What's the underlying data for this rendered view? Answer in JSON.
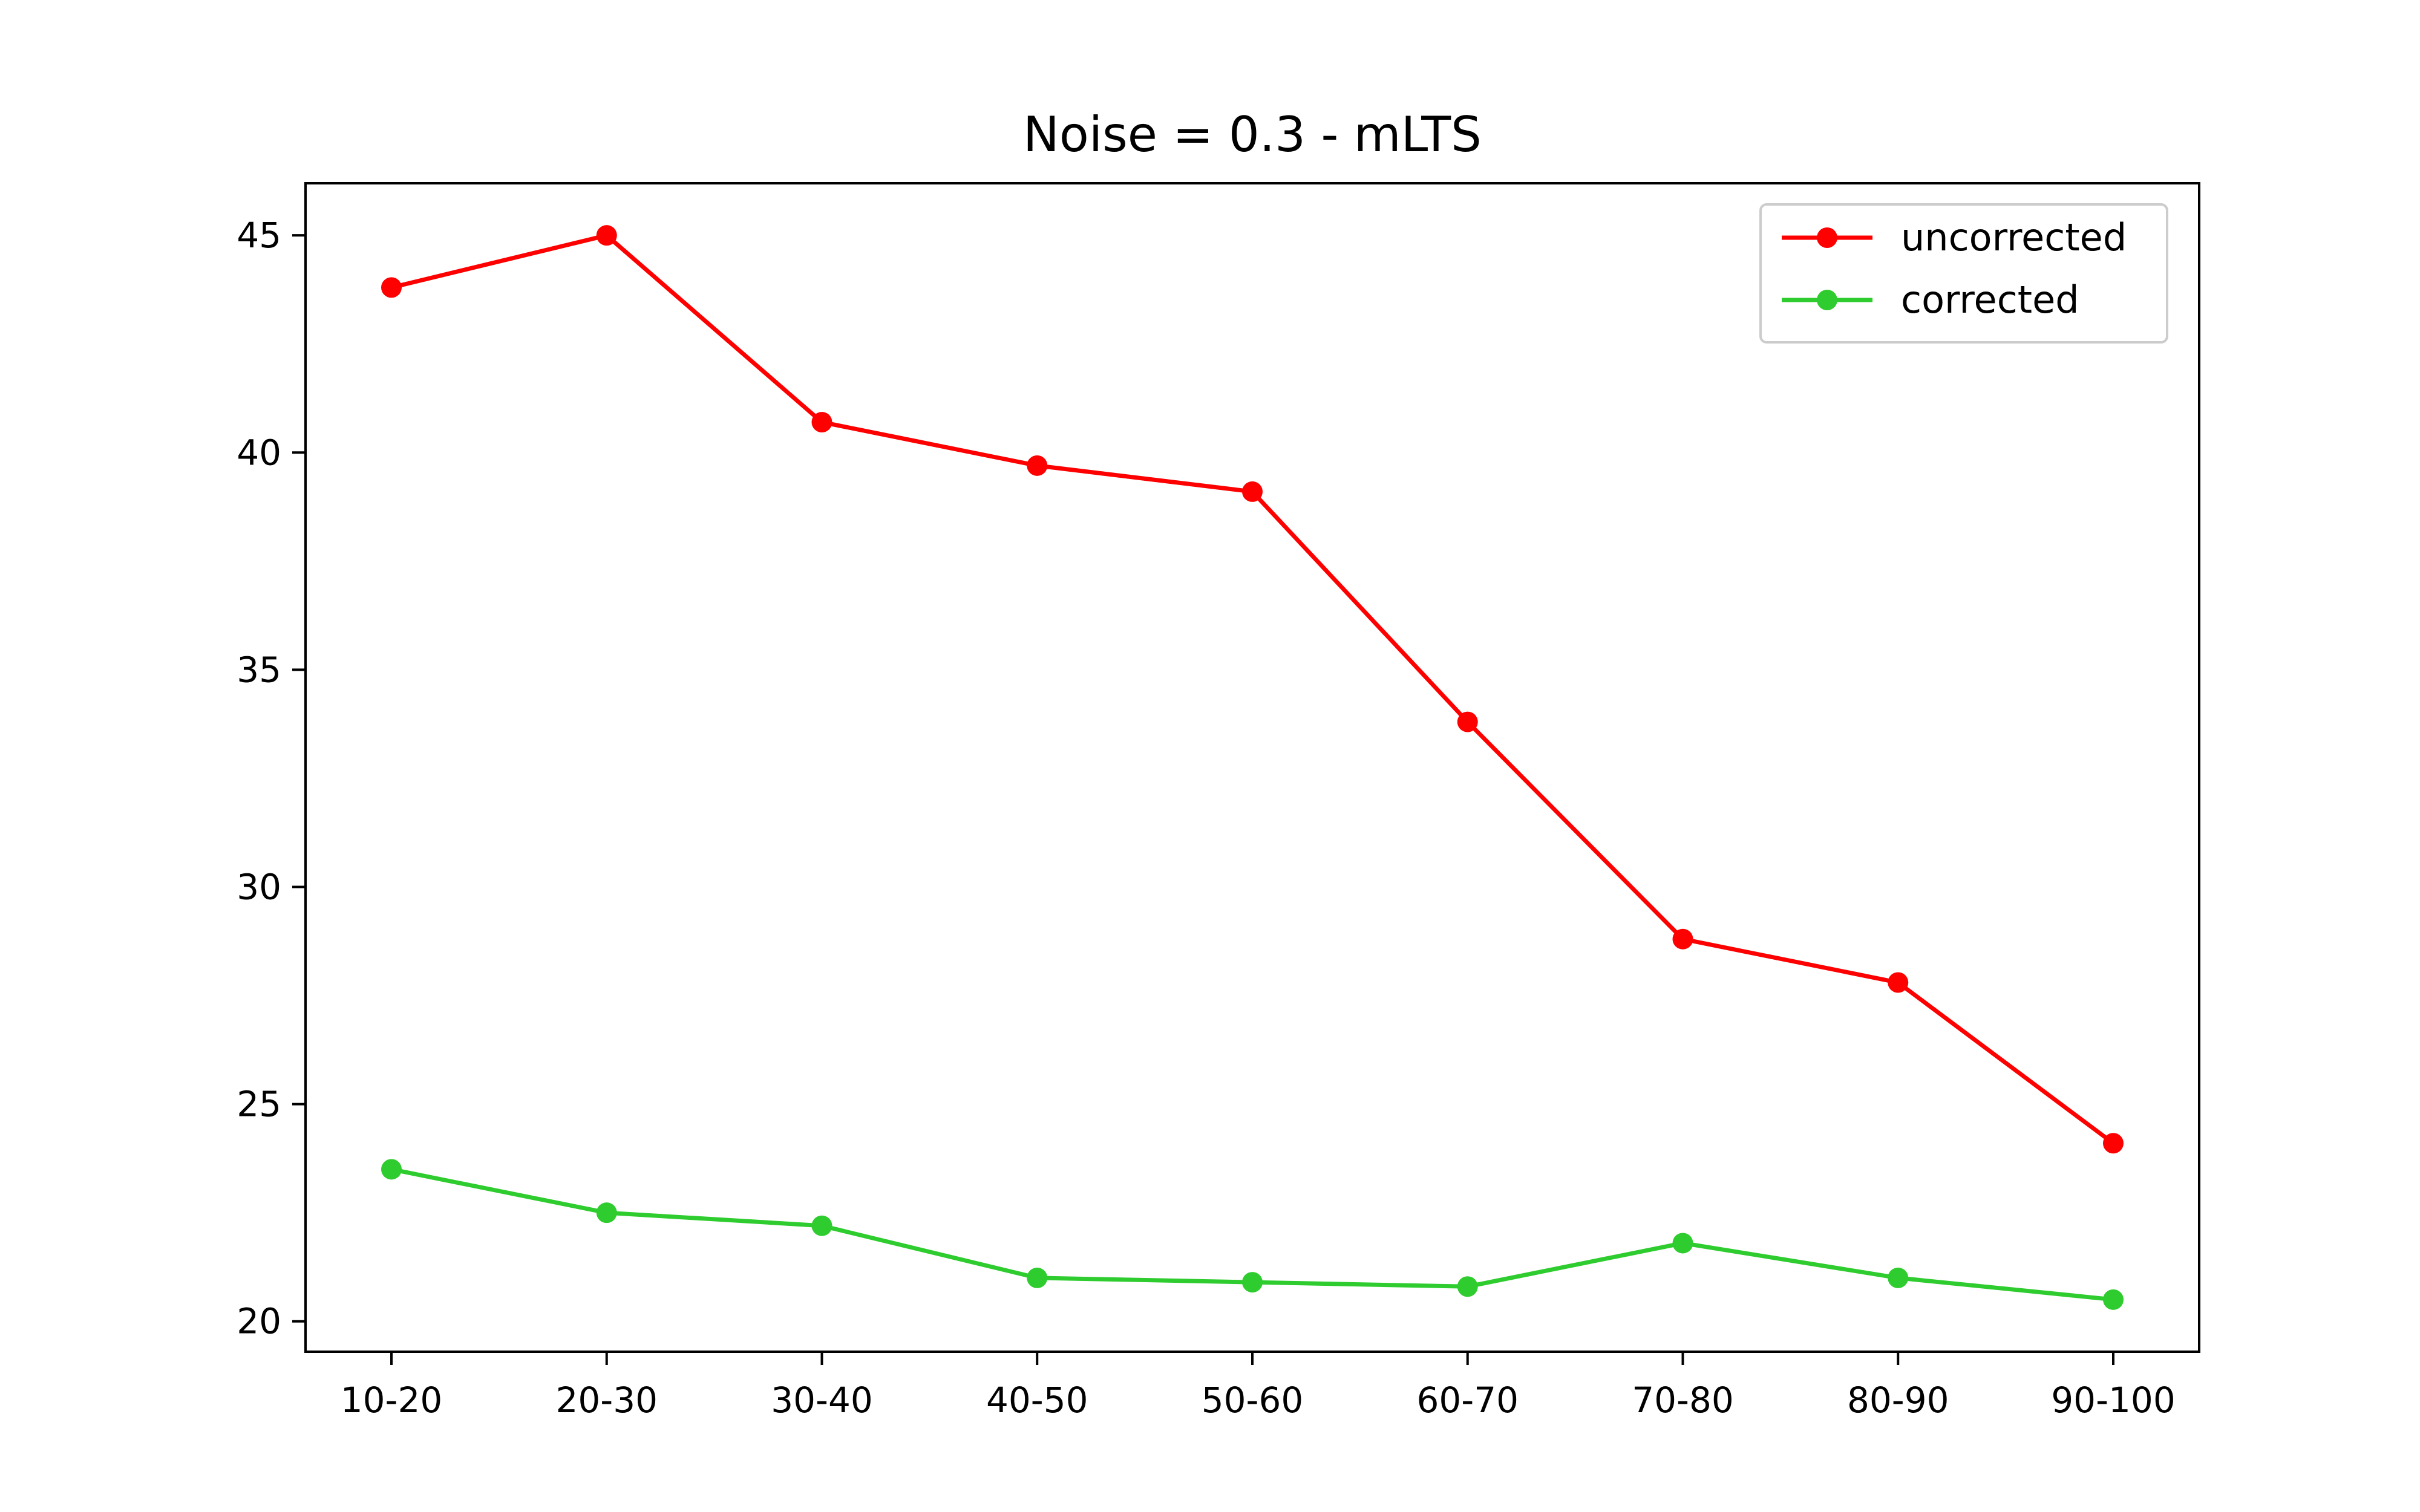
{
  "chart_data": {
    "type": "line",
    "title": "Noise = 0.3 - mLTS",
    "xlabel": "",
    "ylabel": "",
    "categories": [
      "10-20",
      "20-30",
      "30-40",
      "40-50",
      "50-60",
      "60-70",
      "70-80",
      "80-90",
      "90-100"
    ],
    "ylim": [
      19.3,
      46.2
    ],
    "yticks": [
      20,
      25,
      30,
      35,
      40,
      45
    ],
    "grid": false,
    "legend_position": "top-right",
    "series": [
      {
        "name": "uncorrected",
        "color": "#ff0000",
        "marker": "circle",
        "values": [
          43.8,
          45.0,
          40.7,
          39.7,
          39.1,
          33.8,
          28.8,
          27.8,
          24.1
        ]
      },
      {
        "name": "corrected",
        "color": "#2ecc2e",
        "marker": "circle",
        "values": [
          23.5,
          22.5,
          22.2,
          21.0,
          20.9,
          20.8,
          21.8,
          21.0,
          20.5
        ]
      }
    ]
  }
}
